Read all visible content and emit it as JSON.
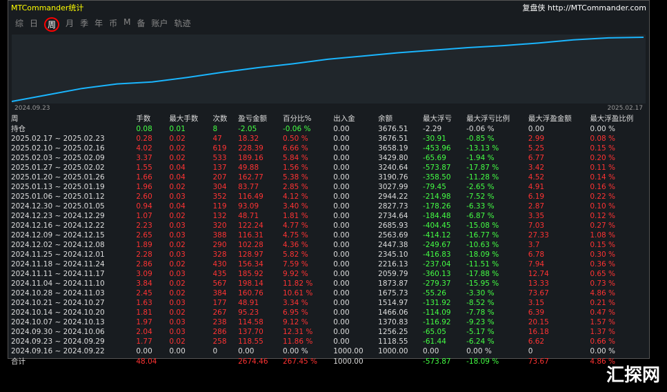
{
  "title": "MTCommander统计",
  "brand": "复盘侠 http://MTCommander.com",
  "tabs": [
    "综",
    "日",
    "周",
    "月",
    "季",
    "年",
    "币",
    "M",
    "备",
    "账户",
    "轨迹"
  ],
  "dates": [
    "2024.09.23",
    "2025.02.17"
  ],
  "curve": [
    0,
    10,
    20,
    27,
    30,
    37,
    45,
    52,
    58,
    65,
    70,
    75,
    79,
    83,
    86,
    90,
    95,
    98,
    99
  ],
  "cols": [
    "周",
    "手数",
    "最大手数",
    "次数",
    "盈亏金额",
    "百分比%",
    "出入金",
    "余额",
    "最大浮亏",
    "最大浮亏比例",
    "最大浮盈金额",
    "最大浮盈比例"
  ],
  "pos": [
    "持仓",
    "0.08",
    "0.01",
    "8",
    "-2.05",
    "-0.06 %",
    "0.00",
    "3676.51",
    "-2.29",
    "-0.06 %",
    "0.00",
    "0.00 %"
  ],
  "rows": [
    [
      "2025.02.17 ~ 2025.02.23",
      "0.28",
      "0.02",
      "47",
      "18.32",
      "0.50 %",
      "0.00",
      "3676.51",
      "-30.91",
      "-0.85 %",
      "2.99",
      "0.08 %"
    ],
    [
      "2025.02.10 ~ 2025.02.16",
      "4.02",
      "0.02",
      "619",
      "228.39",
      "6.66 %",
      "0.00",
      "3658.19",
      "-453.96",
      "-13.13 %",
      "5.25",
      "0.15 %"
    ],
    [
      "2025.02.03 ~ 2025.02.09",
      "3.37",
      "0.02",
      "533",
      "189.16",
      "5.84 %",
      "0.00",
      "3429.80",
      "-65.69",
      "-1.94 %",
      "6.77",
      "0.20 %"
    ],
    [
      "2025.01.27 ~ 2025.02.02",
      "1.55",
      "0.04",
      "137",
      "49.88",
      "1.56 %",
      "0.00",
      "3240.64",
      "-573.87",
      "-17.87 %",
      "3.42",
      "0.11 %"
    ],
    [
      "2025.01.20 ~ 2025.01.26",
      "1.66",
      "0.04",
      "207",
      "162.77",
      "5.38 %",
      "0.00",
      "3190.76",
      "-358.50",
      "-11.28 %",
      "4.52",
      "0.14 %"
    ],
    [
      "2025.01.13 ~ 2025.01.19",
      "1.96",
      "0.02",
      "304",
      "83.77",
      "2.85 %",
      "0.00",
      "3027.99",
      "-79.45",
      "-2.65 %",
      "4.91",
      "0.16 %"
    ],
    [
      "2025.01.06 ~ 2025.01.12",
      "2.60",
      "0.03",
      "352",
      "116.49",
      "4.12 %",
      "0.00",
      "2944.22",
      "-214.98",
      "-7.52 %",
      "6.19",
      "0.22 %"
    ],
    [
      "2024.12.30 ~ 2025.01.05",
      "0.94",
      "0.04",
      "119",
      "93.09",
      "3.40 %",
      "0.00",
      "2827.73",
      "-178.26",
      "-6.33 %",
      "2.87",
      "0.10 %"
    ],
    [
      "2024.12.23 ~ 2024.12.29",
      "1.07",
      "0.02",
      "132",
      "48.71",
      "1.81 %",
      "0.00",
      "2734.64",
      "-184.48",
      "-6.87 %",
      "3.35",
      "0.12 %"
    ],
    [
      "2024.12.16 ~ 2024.12.22",
      "2.23",
      "0.03",
      "320",
      "122.24",
      "4.77 %",
      "0.00",
      "2685.93",
      "-404.45",
      "-15.08 %",
      "7.03",
      "0.27 %"
    ],
    [
      "2024.12.09 ~ 2024.12.15",
      "2.65",
      "0.03",
      "388",
      "116.31",
      "4.75 %",
      "0.00",
      "2563.69",
      "-414.12",
      "-16.77 %",
      "27.33",
      "1.08 %"
    ],
    [
      "2024.12.02 ~ 2024.12.08",
      "1.89",
      "0.02",
      "290",
      "102.28",
      "4.36 %",
      "0.00",
      "2447.38",
      "-249.67",
      "-10.63 %",
      "3.7",
      "0.15 %"
    ],
    [
      "2024.11.25 ~ 2024.12.01",
      "2.28",
      "0.03",
      "328",
      "128.97",
      "5.82 %",
      "0.00",
      "2345.10",
      "-416.83",
      "-18.09 %",
      "6.78",
      "0.30 %"
    ],
    [
      "2024.11.18 ~ 2024.11.24",
      "2.86",
      "0.02",
      "430",
      "156.34",
      "7.59 %",
      "0.00",
      "2216.13",
      "-237.04",
      "-11.51 %",
      "7.94",
      "0.36 %"
    ],
    [
      "2024.11.11 ~ 2024.11.17",
      "3.09",
      "0.03",
      "435",
      "185.92",
      "9.92 %",
      "0.00",
      "2059.79",
      "-360.13",
      "-17.88 %",
      "12.74",
      "0.65 %"
    ],
    [
      "2024.11.04 ~ 2024.11.10",
      "3.84",
      "0.02",
      "567",
      "198.14",
      "11.82 %",
      "0.00",
      "1873.87",
      "-279.37",
      "-15.95 %",
      "13.33",
      "0.73 %"
    ],
    [
      "2024.10.28 ~ 2024.11.03",
      "2.45",
      "0.02",
      "384",
      "160.76",
      "10.61 %",
      "0.00",
      "1675.73",
      "-55.26",
      "-3.30 %",
      "73.67",
      "4.86 %"
    ],
    [
      "2024.10.21 ~ 2024.10.27",
      "1.63",
      "0.03",
      "177",
      "48.91",
      "3.34 %",
      "0.00",
      "1514.97",
      "-131.92",
      "-8.52 %",
      "3.15",
      "0.21 %"
    ],
    [
      "2024.10.14 ~ 2024.10.20",
      "1.81",
      "0.02",
      "267",
      "95.23",
      "6.95 %",
      "0.00",
      "1466.06",
      "-114.09",
      "-7.78 %",
      "6.39",
      "0.47 %"
    ],
    [
      "2024.10.07 ~ 2024.10.13",
      "1.97",
      "0.03",
      "238",
      "114.58",
      "9.12 %",
      "0.00",
      "1370.83",
      "-116.92",
      "-9.23 %",
      "20.15",
      "1.57 %"
    ],
    [
      "2024.09.30 ~ 2024.10.06",
      "2.04",
      "0.03",
      "286",
      "137.70",
      "12.31 %",
      "0.00",
      "1256.25",
      "-65.05",
      "-5.17 %",
      "16.18",
      "1.37 %"
    ],
    [
      "2024.09.23 ~ 2024.09.29",
      "1.77",
      "0.02",
      "258",
      "118.55",
      "11.86 %",
      "0.00",
      "1118.55",
      "-61.44",
      "-6.24 %",
      "6.62",
      "0.66 %"
    ],
    [
      "2024.09.16 ~ 2024.09.22",
      "0.00",
      "0.00",
      "0",
      "0.00",
      "0.00 %",
      "1000.00",
      "1000.00",
      "0.00",
      "0.00 %",
      "0",
      "0.00 %"
    ]
  ],
  "total": [
    "合计",
    "48.04",
    "",
    "",
    "2674.46",
    "267.45 %",
    "1000.00",
    "",
    "-573.87",
    "-18.09 %",
    "73.67",
    "4.86 %"
  ],
  "watermark": "汇探网"
}
